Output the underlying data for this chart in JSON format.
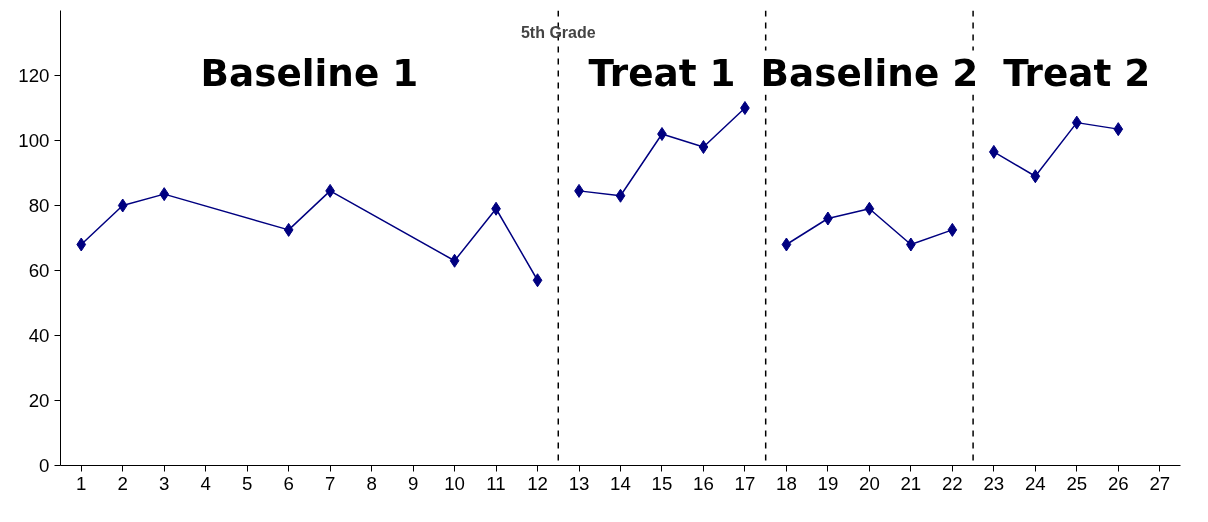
{
  "chart_data": {
    "type": "line",
    "xlim": [
      0.5,
      27.5
    ],
    "xticks": [
      1,
      2,
      3,
      4,
      5,
      6,
      7,
      8,
      9,
      10,
      11,
      12,
      13,
      14,
      15,
      16,
      17,
      18,
      19,
      20,
      21,
      22,
      23,
      24,
      25,
      26,
      27
    ],
    "ylim": [
      0,
      140
    ],
    "yticks": [
      0,
      20,
      40,
      60,
      80,
      100,
      120
    ],
    "series": [
      {
        "color": "#000080",
        "x": [
          1,
          2,
          3,
          6,
          7,
          10,
          11,
          12
        ],
        "values": [
          68,
          80,
          83.5,
          72.5,
          84.5,
          63,
          79,
          57
        ]
      },
      {
        "color": "#000080",
        "x": [
          13,
          14,
          15,
          16,
          17
        ],
        "values": [
          84.5,
          83,
          102,
          98,
          110
        ]
      },
      {
        "color": "#000080",
        "x": [
          18,
          19,
          20,
          21,
          22
        ],
        "values": [
          68,
          76,
          79,
          68,
          72.5
        ]
      },
      {
        "color": "#000080",
        "x": [
          23,
          24,
          25,
          26
        ],
        "values": [
          96.5,
          89,
          105.5,
          103.5
        ]
      }
    ],
    "marker": "diamond",
    "line_style": "solid",
    "grid": false,
    "ref_lines": [
      {
        "axis": "x",
        "value": 12.5,
        "label": "5th Grade",
        "color": "#000000",
        "line_style": "dashed"
      },
      {
        "axis": "x",
        "value": 17.5,
        "label": null,
        "color": "#000000",
        "line_style": "dashed"
      },
      {
        "axis": "x",
        "value": 22.5,
        "label": null,
        "color": "#000000",
        "line_style": "dashed"
      }
    ],
    "annotations": [
      "Baseline 1",
      "Treat 1",
      "Baseline 2",
      "Treat 2"
    ]
  }
}
